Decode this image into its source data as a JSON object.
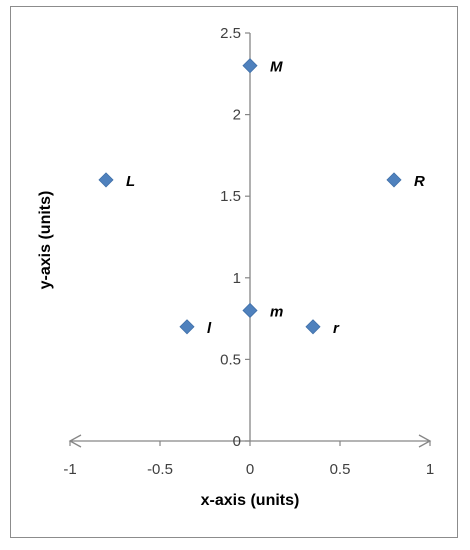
{
  "chart_data": {
    "type": "scatter",
    "title": "",
    "xlabel": "x-axis (units)",
    "ylabel": "y-axis (units)",
    "xlim": [
      -1,
      1
    ],
    "ylim": [
      0,
      2.5
    ],
    "x_ticks": [
      "-1",
      "-0.5",
      "0",
      "0.5",
      "1"
    ],
    "y_ticks": [
      "0",
      "0.5",
      "1",
      "1.5",
      "2",
      "2.5"
    ],
    "grid": false,
    "legend": "none",
    "marker": "diamond",
    "marker_color": "#4f81bd",
    "axis_color": "#868686",
    "points": [
      {
        "label": "M",
        "x": 0,
        "y": 2.3
      },
      {
        "label": "L",
        "x": -0.8,
        "y": 1.6
      },
      {
        "label": "R",
        "x": 0.8,
        "y": 1.6
      },
      {
        "label": "m",
        "x": 0,
        "y": 0.8
      },
      {
        "label": "l",
        "x": -0.35,
        "y": 0.7
      },
      {
        "label": "r",
        "x": 0.35,
        "y": 0.7
      }
    ]
  }
}
